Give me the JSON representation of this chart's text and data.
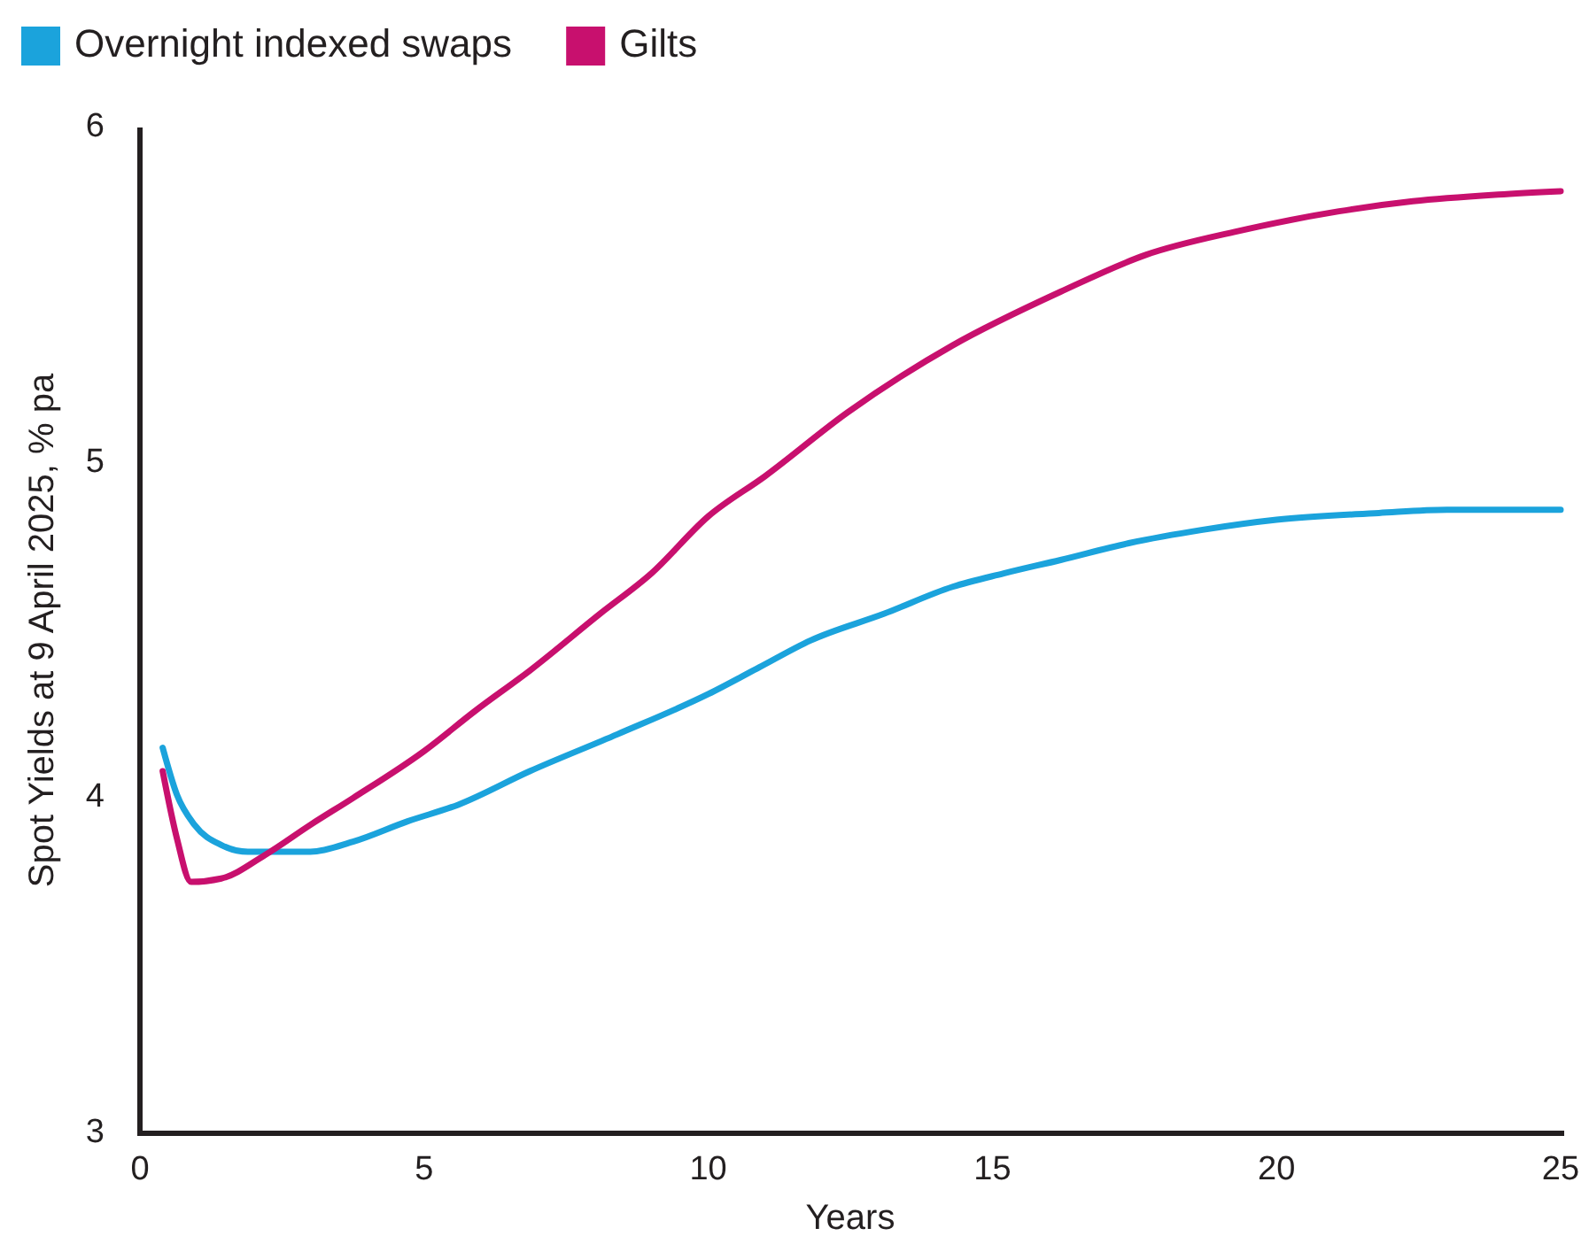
{
  "chart_data": {
    "type": "line",
    "xlabel": "Years",
    "ylabel": "Spot Yields at 9 April 2025, % pa",
    "xlim": [
      0,
      25
    ],
    "xticks": [
      0,
      5,
      10,
      15,
      20,
      25
    ],
    "ylim": [
      3,
      6
    ],
    "yticks": [
      3,
      4,
      5,
      6
    ],
    "legend": "top left",
    "grid": false,
    "marker": "none",
    "line_style": "solid",
    "series": [
      {
        "name": "Overnight indexed swaps",
        "color": "#1ba3dc",
        "x": [
          0.4,
          0.65,
          0.96,
          1.43,
          1.9,
          3.0,
          3.75,
          4.7,
          5.6,
          6.86,
          8.4,
          10.0,
          10.9,
          11.8,
          13.1,
          14.3,
          15.2,
          16.2,
          17.4,
          18.7,
          20.0,
          21.8,
          23.0,
          25
        ],
        "values": [
          4.15,
          4.01,
          3.92,
          3.86,
          3.84,
          3.84,
          3.87,
          3.93,
          3.98,
          4.08,
          4.19,
          4.31,
          4.39,
          4.47,
          4.55,
          4.63,
          4.67,
          4.71,
          4.76,
          4.8,
          4.83,
          4.85,
          4.86,
          4.86
        ]
      },
      {
        "name": "Gilts",
        "color": "#c8106e",
        "x": [
          0.4,
          0.65,
          0.9,
          1.43,
          2.2,
          3.0,
          3.75,
          5.0,
          5.9,
          6.86,
          8.1,
          9.0,
          10.0,
          11.0,
          12.45,
          14.3,
          16.2,
          17.7,
          19.3,
          21.1,
          22.4,
          23.9,
          25
        ],
        "values": [
          4.08,
          3.88,
          3.75,
          3.76,
          3.83,
          3.92,
          4.0,
          4.14,
          4.26,
          4.38,
          4.55,
          4.67,
          4.84,
          4.96,
          5.15,
          5.35,
          5.51,
          5.62,
          5.69,
          5.75,
          5.78,
          5.8,
          5.81
        ]
      }
    ]
  }
}
